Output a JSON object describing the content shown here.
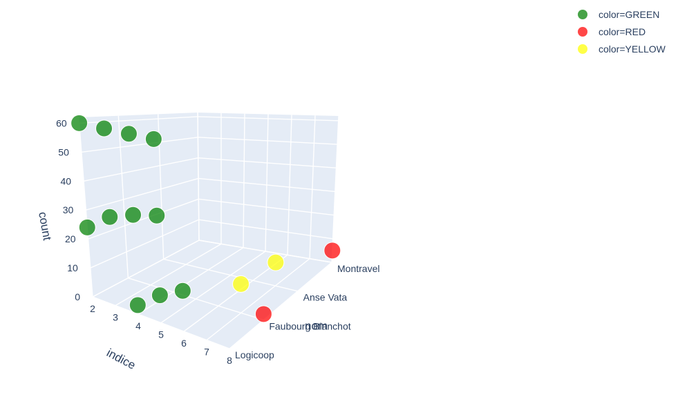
{
  "chart_data": {
    "type": "scatter3d",
    "title": "",
    "axes": {
      "x": {
        "label": "indice",
        "ticks": [
          "2",
          "3",
          "4",
          "5",
          "6",
          "7",
          "8"
        ],
        "range": [
          2,
          8
        ]
      },
      "y": {
        "label": "nom",
        "categories": [
          "Logicoop",
          "Faubourg Blanchot",
          "Anse Vata",
          "Montravel"
        ]
      },
      "z": {
        "label": "count",
        "ticks": [
          "0",
          "10",
          "20",
          "30",
          "40",
          "50",
          "60"
        ],
        "range": [
          0,
          62
        ]
      }
    },
    "legend": {
      "placement": "top-right"
    },
    "series": [
      {
        "name": "color=GREEN",
        "color": "#008000",
        "points": [
          {
            "x": 2,
            "y": "Logicoop",
            "z": 60
          },
          {
            "x": 3,
            "y": "Logicoop",
            "z": 60
          },
          {
            "x": 4,
            "y": "Logicoop",
            "z": 60
          },
          {
            "x": 5,
            "y": "Logicoop",
            "z": 60
          },
          {
            "x": 2,
            "y": "Logicoop",
            "z": 24
          },
          {
            "x": 3,
            "y": "Logicoop",
            "z": 30
          },
          {
            "x": 4,
            "y": "Logicoop",
            "z": 33
          },
          {
            "x": 5,
            "y": "Logicoop",
            "z": 35
          },
          {
            "x": 4,
            "y": "Logicoop",
            "z": 3
          },
          {
            "x": 5,
            "y": "Logicoop",
            "z": 9
          },
          {
            "x": 6,
            "y": "Logicoop",
            "z": 13
          }
        ]
      },
      {
        "name": "color=RED",
        "color": "#ff0000",
        "points": [
          {
            "x": 8,
            "y": "Montravel",
            "z": 5
          },
          {
            "x": 8,
            "y": "Faubourg Blanchot",
            "z": 2
          }
        ]
      },
      {
        "name": "color=YELLOW",
        "color": "#ffff00",
        "points": [
          {
            "x": 7,
            "y": "Faubourg Blanchot",
            "z": 10
          },
          {
            "x": 7,
            "y": "Anse Vata",
            "z": 9
          }
        ]
      }
    ]
  }
}
